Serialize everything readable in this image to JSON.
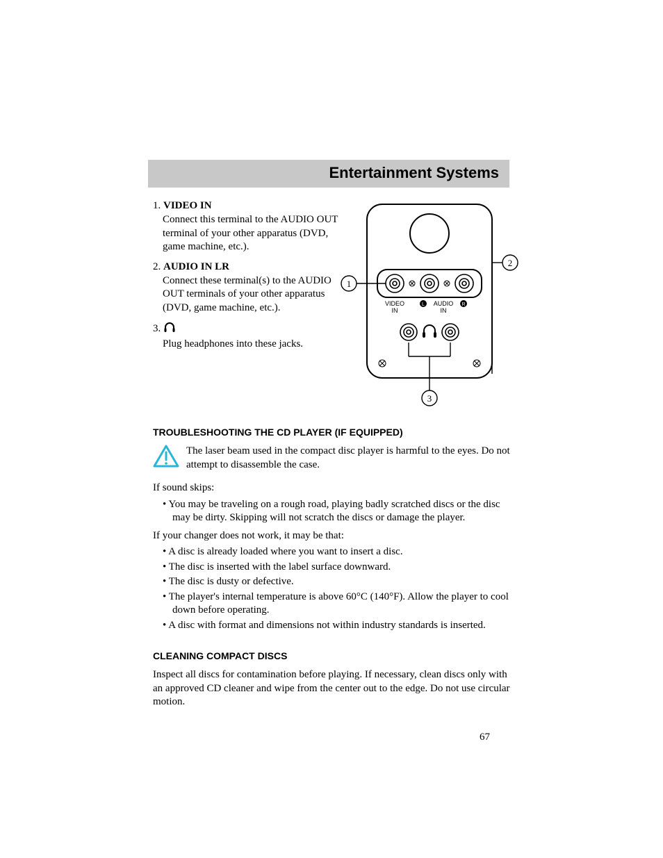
{
  "header": {
    "title": "Entertainment Systems"
  },
  "items": [
    {
      "num": "1.",
      "head": "VIDEO IN",
      "body": "Connect this terminal to the AUDIO OUT terminal of your other apparatus (DVD, game machine, etc.)."
    },
    {
      "num": "2.",
      "head": "AUDIO IN LR",
      "body": "Connect these terminal(s) to the AUDIO OUT terminals of your other apparatus (DVD, game machine, etc.)."
    },
    {
      "num": "3.",
      "head_icon": "headphones",
      "body": "Plug headphones into these jacks."
    }
  ],
  "diagram": {
    "callouts": [
      "1",
      "2",
      "3"
    ],
    "labels": {
      "video": "VIDEO",
      "in1": "IN",
      "l": "L",
      "audio": "AUDIO",
      "r": "R",
      "in2": "IN"
    }
  },
  "troubleshoot": {
    "title": "TROUBLESHOOTING THE CD PLAYER (IF EQUIPPED)",
    "warning": "The laser beam used in the compact disc player is harmful to the eyes. Do not attempt to disassemble the case.",
    "skips_intro": "If sound skips:",
    "skips_bullets": [
      "You may be traveling on a rough road, playing badly scratched discs or the disc may be dirty. Skipping will not scratch the discs or damage the player."
    ],
    "changer_intro": "If your changer does not work, it may be that:",
    "changer_bullets": [
      "A disc is already loaded where you want to insert a disc.",
      "The disc is inserted with the label surface downward.",
      "The disc is dusty or defective.",
      "The player's internal temperature is above 60°C (140°F). Allow the player to cool down before operating.",
      "A disc with format and dimensions not within industry standards is inserted."
    ]
  },
  "cleaning": {
    "title": "CLEANING COMPACT DISCS",
    "body": "Inspect all discs for contamination before playing. If necessary, clean discs only with an approved CD cleaner and wipe from the center out to the edge. Do not use circular motion."
  },
  "page_number": "67",
  "colors": {
    "header_band": "#c8c8c8",
    "warning_stroke": "#29b6d6",
    "text": "#000000",
    "bg": "#ffffff"
  }
}
